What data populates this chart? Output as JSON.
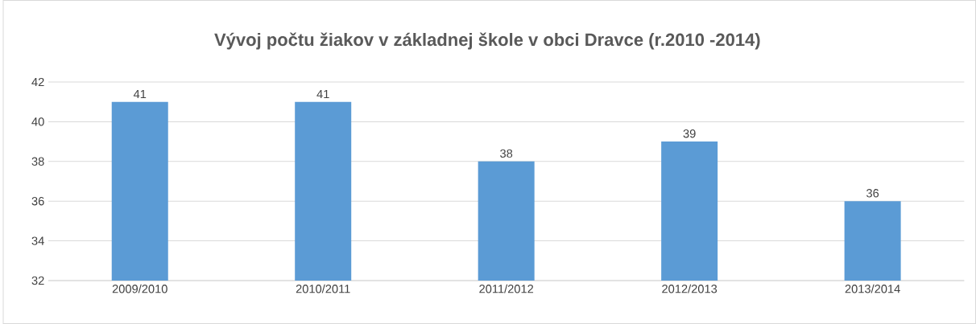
{
  "chart_data": {
    "type": "bar",
    "title": "Vývoj počtu žiakov v základnej škole v obci Dravce (r.2010 -2014)",
    "categories": [
      "2009/2010",
      "2010/2011",
      "2011/2012",
      "2012/2013",
      "2013/2014"
    ],
    "values": [
      41,
      41,
      38,
      39,
      36
    ],
    "color": "#5b9bd5",
    "ylim": [
      32,
      42
    ],
    "yticks": [
      32,
      34,
      36,
      38,
      40,
      42
    ],
    "grid": "y",
    "data_labels": true
  }
}
